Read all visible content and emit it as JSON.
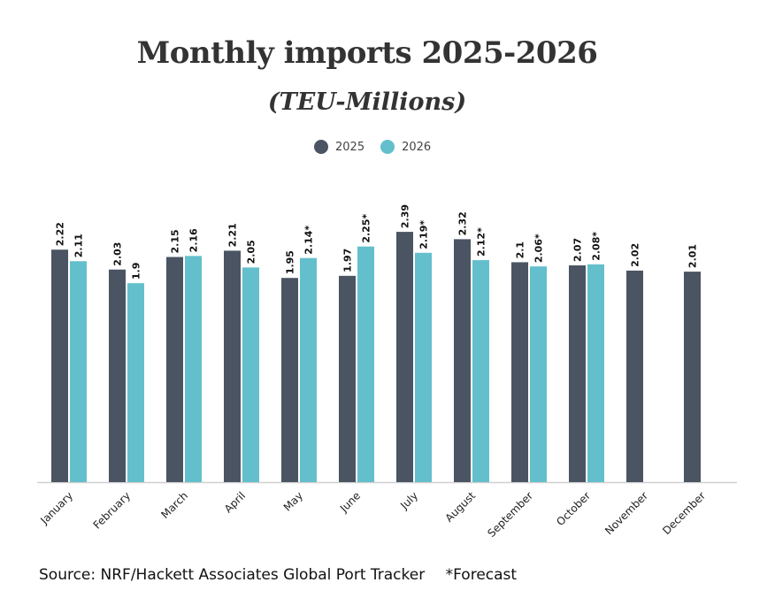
{
  "chart_data": {
    "type": "bar",
    "title": "Monthly imports 2025-2026",
    "subtitle": "(TEU-Millions)",
    "categories": [
      "January",
      "February",
      "March",
      "April",
      "May",
      "June",
      "July",
      "August",
      "September",
      "October",
      "November",
      "December"
    ],
    "series": [
      {
        "name": "2025",
        "color": "#4a5463",
        "values": [
          2.22,
          2.03,
          2.15,
          2.21,
          1.95,
          1.97,
          2.39,
          2.32,
          2.1,
          2.07,
          2.02,
          2.01
        ],
        "labels": [
          "2.22",
          "2.03",
          "2.15",
          "2.21",
          "1.95",
          "1.97",
          "2.39",
          "2.32",
          "2.1",
          "2.07",
          "2.02",
          "2.01"
        ]
      },
      {
        "name": "2026",
        "color": "#64bfcc",
        "values": [
          2.11,
          1.9,
          2.16,
          2.05,
          2.14,
          2.25,
          2.19,
          2.12,
          2.06,
          2.08,
          null,
          null
        ],
        "labels": [
          "2.11",
          "1.9",
          "2.16",
          "2.05",
          "2.14*",
          "2.25*",
          "2.19*",
          "2.12*",
          "2.06*",
          "2.08*",
          "",
          ""
        ]
      }
    ],
    "ylim": [
      0,
      2.45
    ],
    "grid": false,
    "legend_position": "top-center",
    "xlabel": "",
    "ylabel": ""
  },
  "footer": {
    "source": "Source: NRF/Hackett Associates Global Port Tracker",
    "note": "*Forecast"
  }
}
